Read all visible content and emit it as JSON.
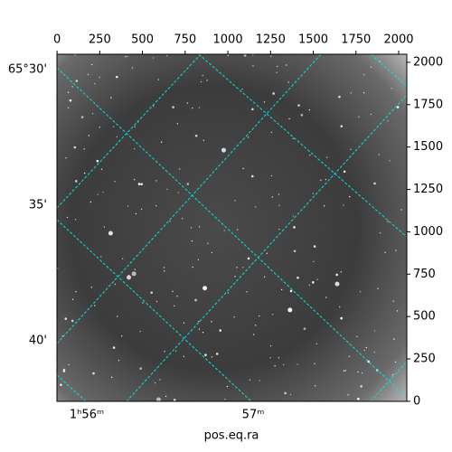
{
  "chart_data": {
    "type": "image",
    "xlabel": "pos.eq.ra",
    "xlim": [
      -0.5,
      2047.5
    ],
    "xticks": [
      0,
      250,
      500,
      750,
      1000,
      1250,
      1500,
      1750,
      2000
    ],
    "ylim": [
      -0.5,
      2047.5
    ],
    "yticks": [
      0,
      250,
      500,
      750,
      1000,
      1250,
      1500,
      1750,
      2000
    ],
    "left_labels": [
      "65°30'",
      "35'",
      "40'"
    ],
    "bottom_labels": [
      "1ʰ56ᵐ",
      "57ᵐ"
    ]
  }
}
